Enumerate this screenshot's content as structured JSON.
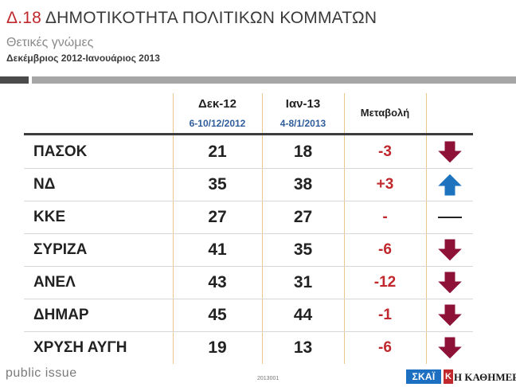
{
  "header": {
    "number": "Δ.18",
    "title": "ΔΗΜΟΤΙΚΟΤΗΤΑ ΠΟΛΙΤΙΚΩΝ ΚΟΜΜΑΤΩΝ",
    "subtitle": "Θετικές γνώμες",
    "period": "Δεκέμβριος 2012-Ιανουάριος 2013"
  },
  "colors": {
    "accent_red": "#c0282d",
    "date_blue": "#2f5d9c",
    "down_arrow": "#8e1238",
    "up_arrow": "#1e73be"
  },
  "chart_data": {
    "type": "table",
    "columns": [
      {
        "label": "Δεκ-12",
        "dates": "6-10/12/2012"
      },
      {
        "label": "Ιαν-13",
        "dates": "4-8/1/2013"
      },
      {
        "label": "Μεταβολή"
      }
    ],
    "rows": [
      {
        "party": "ΠΑΣΟΚ",
        "dec": 21,
        "jan": 18,
        "change": "-3",
        "trend": "down"
      },
      {
        "party": "ΝΔ",
        "dec": 35,
        "jan": 38,
        "change": "+3",
        "trend": "up"
      },
      {
        "party": "ΚΚΕ",
        "dec": 27,
        "jan": 27,
        "change": "-",
        "trend": "flat"
      },
      {
        "party": "ΣΥΡΙΖΑ",
        "dec": 41,
        "jan": 35,
        "change": "-6",
        "trend": "down"
      },
      {
        "party": "ΑΝΕΛ",
        "dec": 43,
        "jan": 31,
        "change": "-12",
        "trend": "down"
      },
      {
        "party": "ΔΗΜΑΡ",
        "dec": 45,
        "jan": 44,
        "change": "-1",
        "trend": "down"
      },
      {
        "party": "ΧΡΥΣΗ ΑΥΓΗ",
        "dec": 19,
        "jan": 13,
        "change": "-6",
        "trend": "down"
      }
    ]
  },
  "footer": {
    "brand": "public issue",
    "code": "2013001",
    "logo_skai": "ΣΚΑΪ",
    "logo_kathimerini_mark": "Κ",
    "logo_kathimerini": "Η ΚΑΘΗΜΕΡΙΝΗ"
  }
}
